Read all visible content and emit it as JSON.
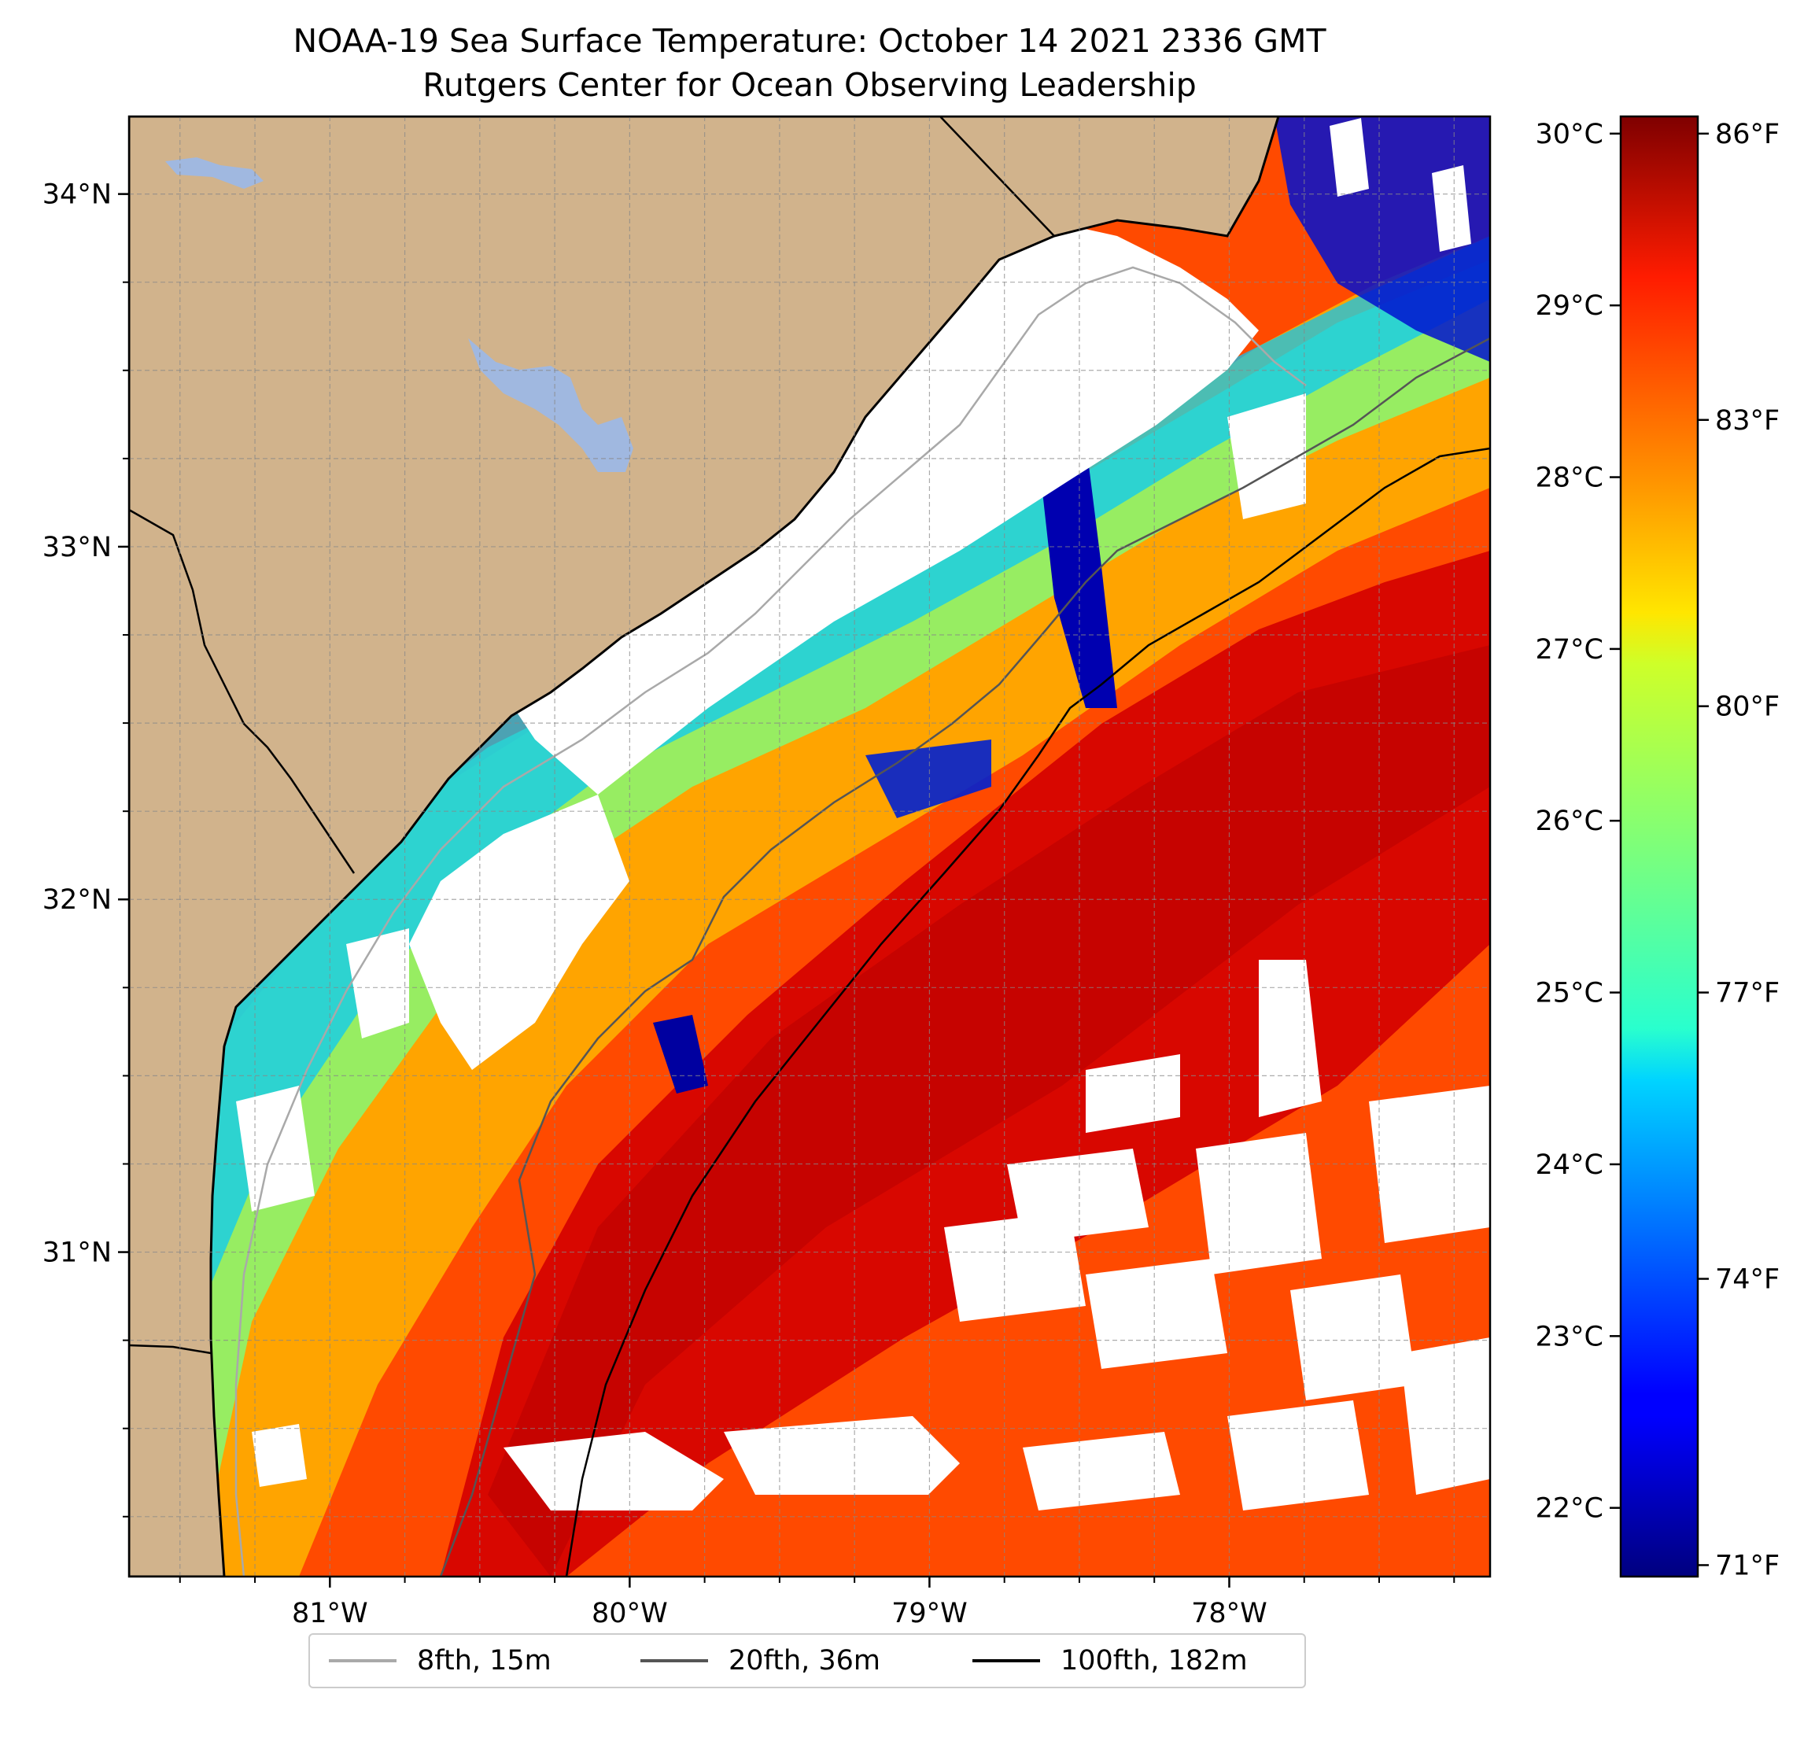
{
  "title": {
    "line1": "NOAA-19 Sea Surface Temperature: October 14 2021 2336 GMT",
    "line2": "Rutgers Center for Ocean Observing Leadership"
  },
  "map": {
    "lon_range": [
      -81.67,
      -77.13
    ],
    "lat_range": [
      30.08,
      34.22
    ],
    "lon_ticks": [
      {
        "value": -81,
        "label": "81°W"
      },
      {
        "value": -80,
        "label": "80°W"
      },
      {
        "value": -79,
        "label": "79°W"
      },
      {
        "value": -78,
        "label": "78°W"
      }
    ],
    "lat_ticks": [
      {
        "value": 34,
        "label": "34°N"
      },
      {
        "value": 33,
        "label": "33°N"
      },
      {
        "value": 32,
        "label": "32°N"
      },
      {
        "value": 31,
        "label": "31°N"
      }
    ],
    "grid": true,
    "land_color": "#d1b38c",
    "water_body_color": "#a0b8e0"
  },
  "colorbar": {
    "colormap": "jet",
    "celsius_range": [
      21.6,
      30.1
    ],
    "celsius_ticks": [
      {
        "value": 30,
        "label": "30°C"
      },
      {
        "value": 29,
        "label": "29°C"
      },
      {
        "value": 28,
        "label": "28°C"
      },
      {
        "value": 27,
        "label": "27°C"
      },
      {
        "value": 26,
        "label": "26°C"
      },
      {
        "value": 25,
        "label": "25°C"
      },
      {
        "value": 24,
        "label": "24°C"
      },
      {
        "value": 23,
        "label": "23°C"
      },
      {
        "value": 22,
        "label": "22°C"
      }
    ],
    "fahrenheit_ticks": [
      {
        "value": 86,
        "label": "86°F"
      },
      {
        "value": 83,
        "label": "83°F"
      },
      {
        "value": 80,
        "label": "80°F"
      },
      {
        "value": 77,
        "label": "77°F"
      },
      {
        "value": 74,
        "label": "74°F"
      },
      {
        "value": 71,
        "label": "71°F"
      }
    ]
  },
  "legend": {
    "placement": "bottom-center",
    "entries": [
      {
        "label": "8fth, 15m",
        "color": "#a9a9a9"
      },
      {
        "label": "20fth, 36m",
        "color": "#555555"
      },
      {
        "label": "100fth, 182m",
        "color": "#000000"
      }
    ]
  }
}
